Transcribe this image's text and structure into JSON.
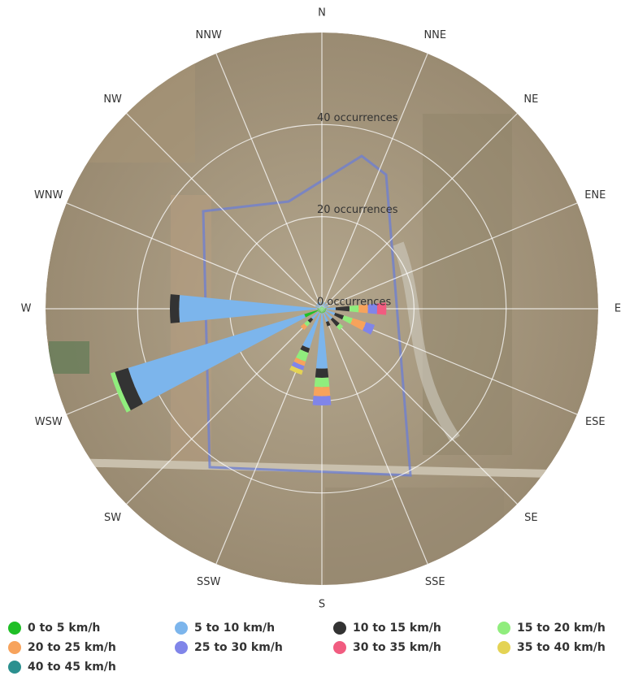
{
  "chart_data": {
    "type": "windrose",
    "categories": [
      "N",
      "NNE",
      "NE",
      "ENE",
      "E",
      "ESE",
      "SE",
      "SSE",
      "S",
      "SSW",
      "SW",
      "WSW",
      "W",
      "WNW",
      "NW",
      "NNW"
    ],
    "ylim": [
      0,
      60
    ],
    "yticks": [
      {
        "value": 0,
        "label": "0 occurrences"
      },
      {
        "value": 20,
        "label": "20 occurrences"
      },
      {
        "value": 40,
        "label": "40 occurrences"
      }
    ],
    "grid": true,
    "series": [
      {
        "name": "0 to 5 km/h",
        "color": "#1fbf26",
        "values": [
          0.5,
          0.5,
          0.5,
          0.5,
          1,
          1,
          1,
          1,
          1,
          1,
          1,
          4,
          1,
          0.5,
          0.5,
          0.5
        ]
      },
      {
        "name": "5 to 10 km/h",
        "color": "#7cb5ec",
        "values": [
          1,
          1,
          1,
          1,
          2,
          2,
          2,
          2,
          12,
          8,
          2,
          40,
          30,
          1,
          1,
          1
        ]
      },
      {
        "name": "10 to 15 km/h",
        "color": "#333333",
        "values": [
          0,
          0,
          0,
          0,
          3,
          2,
          2,
          1,
          2,
          1,
          1,
          3,
          2,
          0,
          0,
          0
        ]
      },
      {
        "name": "15 to 20 km/h",
        "color": "#90ed7d",
        "values": [
          0,
          0,
          0,
          0,
          2,
          2,
          1,
          0,
          2,
          2,
          1,
          1,
          0,
          0,
          0,
          0
        ]
      },
      {
        "name": "20 to 25 km/h",
        "color": "#f7a35c",
        "values": [
          0,
          0,
          0,
          0,
          2,
          3,
          0,
          0,
          2,
          1,
          1,
          0,
          0,
          0,
          0,
          0
        ]
      },
      {
        "name": "25 to 30 km/h",
        "color": "#8085e9",
        "values": [
          0,
          0,
          0,
          0,
          2,
          2,
          0,
          0,
          2,
          1,
          0,
          0,
          0,
          0,
          0,
          0
        ]
      },
      {
        "name": "30 to 35 km/h",
        "color": "#f15c80",
        "values": [
          0,
          0,
          0,
          0,
          2,
          0,
          0,
          0,
          0,
          0,
          0,
          0,
          0,
          0,
          0,
          0
        ]
      },
      {
        "name": "35 to 40 km/h",
        "color": "#e4d354",
        "values": [
          0,
          0,
          0,
          0,
          0,
          0,
          0,
          0,
          0,
          1,
          0,
          0,
          0,
          0,
          0,
          0
        ]
      },
      {
        "name": "40 to 45 km/h",
        "color": "#2b908f",
        "values": [
          0,
          0,
          0,
          0,
          0,
          0,
          0,
          0,
          0,
          0,
          0,
          0,
          0,
          0,
          0,
          0
        ]
      }
    ]
  }
}
